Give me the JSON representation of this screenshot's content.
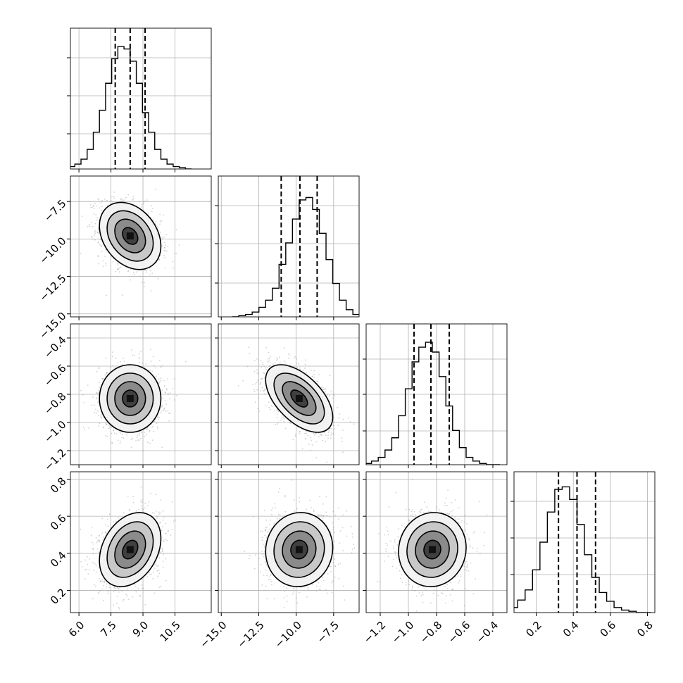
{
  "chart_data": {
    "type": "corner",
    "n_params": 4,
    "params": [
      {
        "range": [
          5.6,
          12.2
        ],
        "center": 8.4,
        "sigma": 0.72,
        "quantiles": [
          7.7,
          8.4,
          9.1
        ],
        "ticks": [
          6.0,
          7.5,
          9.0,
          10.5
        ],
        "tick_labels": [
          "6.0",
          "7.5",
          "9.0",
          "10.5"
        ],
        "hist_counts": [
          2,
          4,
          8,
          16,
          30,
          48,
          70,
          90,
          100,
          98,
          88,
          70,
          46,
          30,
          16,
          8,
          4,
          2,
          1,
          0
        ],
        "hist_ylim": [
          0,
          115
        ],
        "hist_ytick_fracs": [
          0.25,
          0.52,
          0.79
        ]
      },
      {
        "range": [
          -15.2,
          -5.8
        ],
        "center": -9.8,
        "sigma": 1.12,
        "quantiles": [
          -11.0,
          -9.75,
          -8.6
        ],
        "ticks": [
          -15.0,
          -12.5,
          -10.0,
          -7.5
        ],
        "tick_labels": [
          "−15.0",
          "−12.5",
          "−10.0",
          "−7.5"
        ],
        "hist_counts": [
          0,
          1,
          2,
          4,
          8,
          14,
          24,
          44,
          62,
          82,
          98,
          100,
          90,
          70,
          48,
          28,
          14,
          6,
          2,
          1
        ],
        "hist_ylim": [
          0,
          118
        ],
        "hist_ytick_fracs": [
          0.24,
          0.52,
          0.79
        ]
      },
      {
        "range": [
          -1.3,
          -0.3
        ],
        "center": -0.83,
        "sigma": 0.12,
        "quantiles": [
          -0.96,
          -0.84,
          -0.71
        ],
        "ticks": [
          -1.2,
          -1.0,
          -0.8,
          -0.6,
          -0.4
        ],
        "tick_labels": [
          "−1.2",
          "−1.0",
          "−0.8",
          "−0.6",
          "−0.4"
        ],
        "hist_counts": [
          1,
          3,
          6,
          12,
          22,
          40,
          62,
          84,
          96,
          100,
          92,
          72,
          48,
          28,
          14,
          6,
          3,
          1,
          0,
          0
        ],
        "hist_ylim": [
          0,
          115
        ],
        "hist_ytick_fracs": [
          0.24,
          0.5,
          0.75
        ]
      },
      {
        "range": [
          0.08,
          0.84
        ],
        "center": 0.42,
        "sigma": 0.1,
        "quantiles": [
          0.32,
          0.42,
          0.52
        ],
        "ticks": [
          0.2,
          0.4,
          0.6,
          0.8
        ],
        "tick_labels": [
          "0.2",
          "0.4",
          "0.6",
          "0.8"
        ],
        "hist_counts": [
          1,
          4,
          10,
          18,
          34,
          56,
          80,
          98,
          100,
          90,
          70,
          46,
          28,
          16,
          9,
          4,
          2,
          1,
          0,
          0
        ],
        "hist_ylim": [
          0,
          112
        ],
        "hist_ytick_fracs": [
          0.27,
          0.53,
          0.79
        ]
      }
    ],
    "correlations": {
      "1,0": -0.3,
      "2,0": 0.0,
      "2,1": -0.55,
      "3,0": 0.3,
      "3,1": 0.05,
      "3,2": 0.05
    },
    "contour_levels_sigma": [
      0.5,
      1.0,
      1.5,
      2.0
    ],
    "grid": true,
    "colors": {
      "ink": "#000000",
      "grid": "#b0b0b0",
      "points": "#9a9a9a"
    }
  }
}
